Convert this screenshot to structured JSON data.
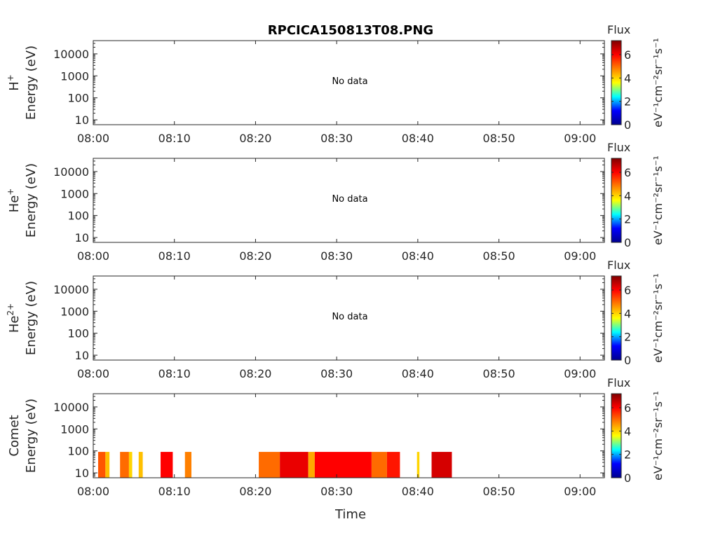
{
  "figure": {
    "title": "RPCICA150813T08.PNG",
    "xlabel": "Time"
  },
  "colormap": {
    "name": "jet",
    "stops": [
      "#00008f",
      "#0000ff",
      "#00ffff",
      "#ffff00",
      "#ff8000",
      "#ff0000",
      "#800000"
    ]
  },
  "chart_data": [
    {
      "type": "heatmap",
      "species": "H",
      "species_sup": "+",
      "ylabel": "Energy (eV)",
      "no_data_text": "No data",
      "x_ticks": [
        "08:00",
        "08:10",
        "08:20",
        "08:30",
        "08:40",
        "08:50",
        "09:00"
      ],
      "x_range_min": [
        0,
        63
      ],
      "y_scale": "log",
      "y_ticks": [
        "10",
        "100",
        "1000",
        "10000"
      ],
      "y_tick_values": [
        10,
        100,
        1000,
        10000
      ],
      "y_range_eV": [
        6,
        40000
      ],
      "colorbar": {
        "label": "Flux",
        "unit": "eV⁻¹cm⁻²sr⁻¹s⁻¹",
        "ticks": [
          "0",
          "2",
          "4",
          "6"
        ],
        "tick_values": [
          0,
          2,
          4,
          6
        ],
        "range": [
          0,
          7.2
        ]
      },
      "blocks": []
    },
    {
      "type": "heatmap",
      "species": "He",
      "species_sup": "+",
      "ylabel": "Energy (eV)",
      "no_data_text": "No data",
      "x_ticks": [
        "08:00",
        "08:10",
        "08:20",
        "08:30",
        "08:40",
        "08:50",
        "09:00"
      ],
      "x_range_min": [
        0,
        63
      ],
      "y_scale": "log",
      "y_ticks": [
        "10",
        "100",
        "1000",
        "10000"
      ],
      "y_tick_values": [
        10,
        100,
        1000,
        10000
      ],
      "y_range_eV": [
        6,
        40000
      ],
      "colorbar": {
        "label": "Flux",
        "unit": "eV⁻¹cm⁻²sr⁻¹s⁻¹",
        "ticks": [
          "0",
          "2",
          "4",
          "6"
        ],
        "tick_values": [
          0,
          2,
          4,
          6
        ],
        "range": [
          0,
          7.2
        ]
      },
      "blocks": []
    },
    {
      "type": "heatmap",
      "species": "He",
      "species_sup": "2+",
      "ylabel": "Energy (eV)",
      "no_data_text": "No data",
      "x_ticks": [
        "08:00",
        "08:10",
        "08:20",
        "08:30",
        "08:40",
        "08:50",
        "09:00"
      ],
      "x_range_min": [
        0,
        63
      ],
      "y_scale": "log",
      "y_ticks": [
        "10",
        "100",
        "1000",
        "10000"
      ],
      "y_tick_values": [
        10,
        100,
        1000,
        10000
      ],
      "y_range_eV": [
        6,
        40000
      ],
      "colorbar": {
        "label": "Flux",
        "unit": "eV⁻¹cm⁻²sr⁻¹s⁻¹",
        "ticks": [
          "0",
          "2",
          "4",
          "6"
        ],
        "tick_values": [
          0,
          2,
          4,
          6
        ],
        "range": [
          0,
          7.2
        ]
      },
      "blocks": []
    },
    {
      "type": "heatmap",
      "species": "Comet",
      "species_sup": "",
      "ylabel": "Energy (eV)",
      "no_data_text": "",
      "x_ticks": [
        "08:00",
        "08:10",
        "08:20",
        "08:30",
        "08:40",
        "08:50",
        "09:00"
      ],
      "x_range_min": [
        0,
        63
      ],
      "y_scale": "log",
      "y_ticks": [
        "10",
        "100",
        "1000",
        "10000"
      ],
      "y_tick_values": [
        10,
        100,
        1000,
        10000
      ],
      "y_range_eV": [
        6,
        40000
      ],
      "colorbar": {
        "label": "Flux",
        "unit": "eV⁻¹cm⁻²sr⁻¹s⁻¹",
        "ticks": [
          "0",
          "2",
          "4",
          "6"
        ],
        "tick_values": [
          0,
          2,
          4,
          6
        ],
        "range": [
          0,
          7.2
        ]
      },
      "energy_top_eV": 90,
      "blocks": [
        {
          "t0": 0.6,
          "t1": 1.5,
          "flux": 5.2
        },
        {
          "t0": 1.5,
          "t1": 2.0,
          "flux": 4.2
        },
        {
          "t0": 3.3,
          "t1": 4.4,
          "flux": 5.0
        },
        {
          "t0": 4.4,
          "t1": 4.8,
          "flux": 4.0
        },
        {
          "t0": 5.6,
          "t1": 6.1,
          "flux": 4.2
        },
        {
          "t0": 8.3,
          "t1": 9.8,
          "flux": 6.0
        },
        {
          "t0": 11.3,
          "t1": 12.1,
          "flux": 4.8
        },
        {
          "t0": 20.4,
          "t1": 23.0,
          "flux": 5.0
        },
        {
          "t0": 23.0,
          "t1": 26.5,
          "flux": 6.2
        },
        {
          "t0": 26.5,
          "t1": 27.3,
          "flux": 4.4
        },
        {
          "t0": 27.3,
          "t1": 34.3,
          "flux": 6.0
        },
        {
          "t0": 34.3,
          "t1": 36.2,
          "flux": 5.0
        },
        {
          "t0": 36.2,
          "t1": 37.8,
          "flux": 5.8
        },
        {
          "t0": 39.9,
          "t1": 40.2,
          "flux": 4.0
        },
        {
          "t0": 41.7,
          "t1": 44.2,
          "flux": 6.4
        }
      ]
    }
  ]
}
